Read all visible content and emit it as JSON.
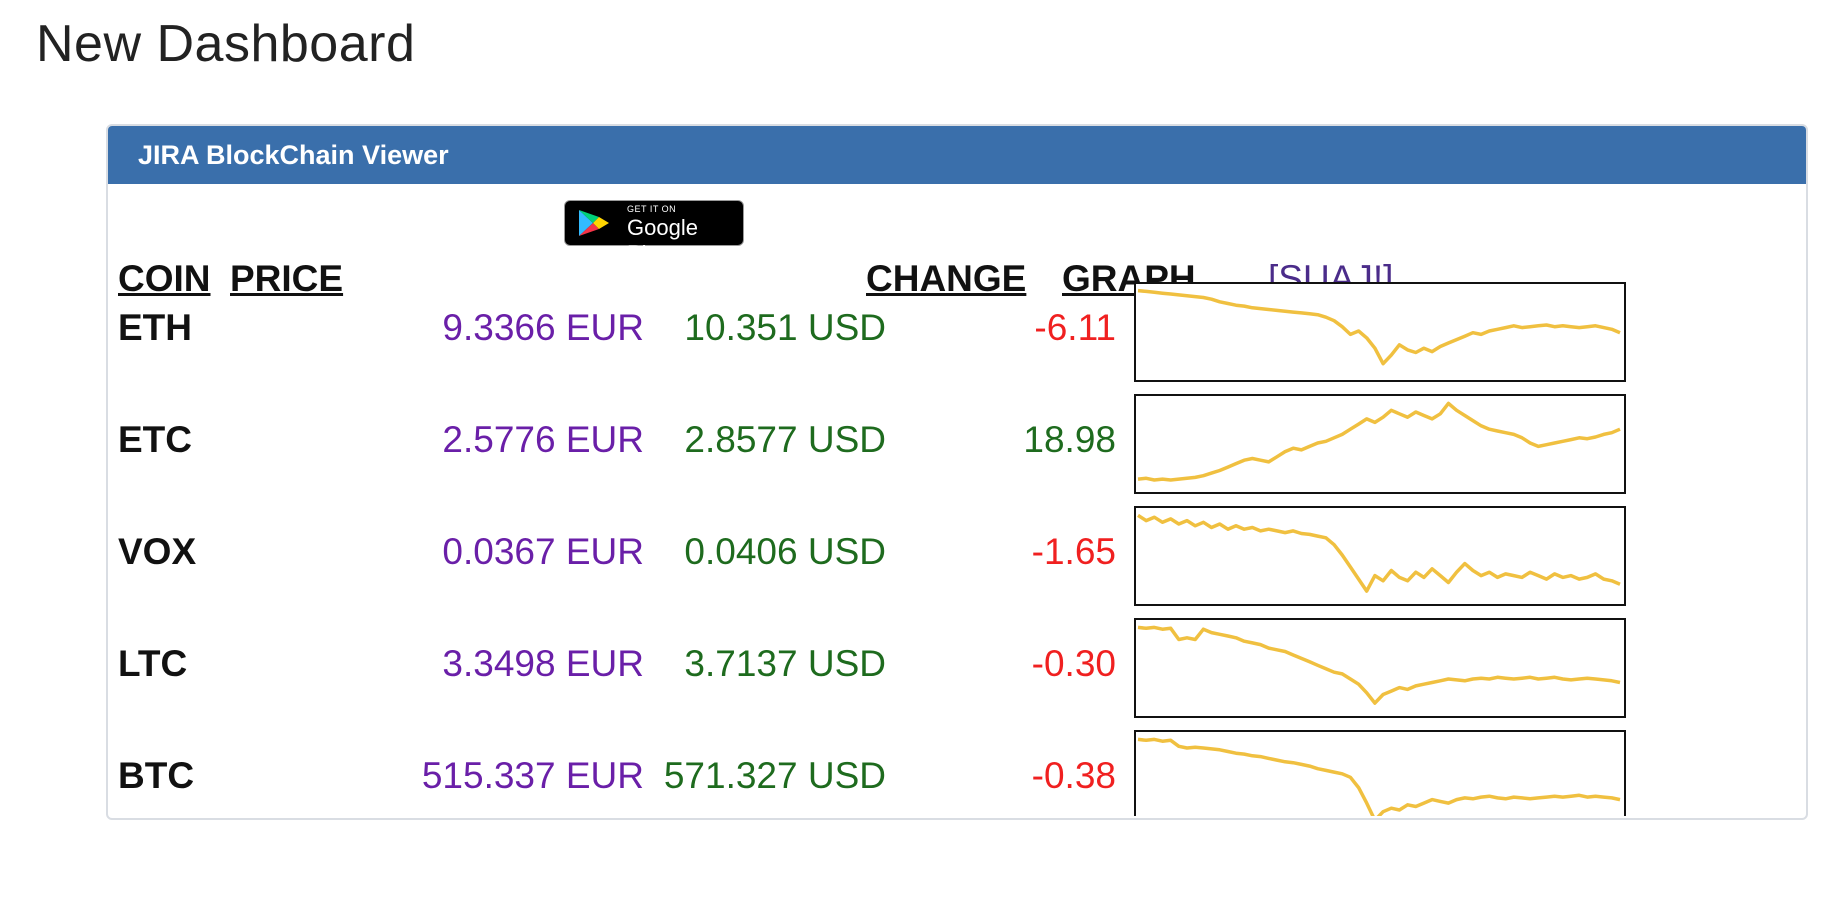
{
  "page": {
    "title": "New Dashboard"
  },
  "panel": {
    "title": "JIRA BlockChain Viewer"
  },
  "headers": {
    "coin": "COIN",
    "price": "PRICE",
    "change": "CHANGE",
    "graph": "GRAPH",
    "link": "[SUAJ!]"
  },
  "google_play": {
    "small_text": "GET IT ON",
    "big_text": "Google Play"
  },
  "colors": {
    "header_bg": "#3a6fab",
    "eur": "#6a1fa8",
    "usd": "#1e6b1e",
    "negative": "#f02020",
    "positive": "#1e6b1e",
    "sparkline": "#f0c040"
  },
  "rows": [
    {
      "coin": "ETH",
      "eur": "9.3366 EUR",
      "usd": "10.351 USD",
      "change": "-6.11",
      "direction": "negative",
      "spark": [
        0.97,
        0.96,
        0.95,
        0.94,
        0.93,
        0.92,
        0.91,
        0.9,
        0.89,
        0.87,
        0.84,
        0.82,
        0.8,
        0.79,
        0.77,
        0.76,
        0.75,
        0.74,
        0.73,
        0.72,
        0.71,
        0.7,
        0.69,
        0.66,
        0.62,
        0.55,
        0.46,
        0.5,
        0.42,
        0.3,
        0.12,
        0.22,
        0.34,
        0.28,
        0.25,
        0.3,
        0.26,
        0.32,
        0.36,
        0.4,
        0.44,
        0.48,
        0.46,
        0.5,
        0.52,
        0.54,
        0.56,
        0.54,
        0.55,
        0.56,
        0.57,
        0.55,
        0.56,
        0.55,
        0.54,
        0.55,
        0.56,
        0.54,
        0.52,
        0.48
      ]
    },
    {
      "coin": "ETC",
      "eur": "2.5776 EUR",
      "usd": "2.8577 USD",
      "change": "18.98",
      "direction": "positive",
      "spark": [
        0.08,
        0.09,
        0.07,
        0.08,
        0.07,
        0.08,
        0.09,
        0.1,
        0.12,
        0.15,
        0.18,
        0.22,
        0.26,
        0.3,
        0.32,
        0.3,
        0.28,
        0.34,
        0.4,
        0.44,
        0.42,
        0.46,
        0.5,
        0.52,
        0.56,
        0.6,
        0.66,
        0.72,
        0.78,
        0.74,
        0.8,
        0.88,
        0.84,
        0.8,
        0.86,
        0.82,
        0.78,
        0.84,
        0.96,
        0.88,
        0.82,
        0.76,
        0.7,
        0.66,
        0.64,
        0.62,
        0.6,
        0.56,
        0.5,
        0.46,
        0.48,
        0.5,
        0.52,
        0.54,
        0.56,
        0.55,
        0.57,
        0.6,
        0.62,
        0.66
      ]
    },
    {
      "coin": "VOX",
      "eur": "0.0367 EUR",
      "usd": "0.0406 USD",
      "change": "-1.65",
      "direction": "negative",
      "spark": [
        0.96,
        0.9,
        0.94,
        0.88,
        0.92,
        0.86,
        0.9,
        0.84,
        0.88,
        0.82,
        0.86,
        0.8,
        0.84,
        0.8,
        0.82,
        0.78,
        0.8,
        0.78,
        0.76,
        0.78,
        0.75,
        0.74,
        0.72,
        0.7,
        0.62,
        0.5,
        0.36,
        0.22,
        0.08,
        0.26,
        0.2,
        0.32,
        0.24,
        0.2,
        0.3,
        0.24,
        0.34,
        0.26,
        0.18,
        0.3,
        0.4,
        0.32,
        0.26,
        0.3,
        0.24,
        0.28,
        0.26,
        0.24,
        0.3,
        0.26,
        0.22,
        0.28,
        0.24,
        0.26,
        0.22,
        0.24,
        0.28,
        0.22,
        0.2,
        0.16
      ]
    },
    {
      "coin": "LTC",
      "eur": "3.3498 EUR",
      "usd": "3.7137 USD",
      "change": "-0.30",
      "direction": "negative",
      "spark": [
        0.96,
        0.95,
        0.96,
        0.94,
        0.95,
        0.82,
        0.84,
        0.82,
        0.94,
        0.9,
        0.88,
        0.86,
        0.84,
        0.8,
        0.78,
        0.76,
        0.72,
        0.7,
        0.68,
        0.64,
        0.6,
        0.56,
        0.52,
        0.48,
        0.44,
        0.42,
        0.36,
        0.3,
        0.2,
        0.08,
        0.18,
        0.22,
        0.26,
        0.24,
        0.28,
        0.3,
        0.32,
        0.34,
        0.36,
        0.35,
        0.34,
        0.36,
        0.37,
        0.36,
        0.38,
        0.37,
        0.36,
        0.37,
        0.38,
        0.36,
        0.37,
        0.38,
        0.36,
        0.35,
        0.36,
        0.37,
        0.36,
        0.35,
        0.34,
        0.32
      ]
    },
    {
      "coin": "BTC",
      "eur": "515.337 EUR",
      "usd": "571.327 USD",
      "change": "-0.38",
      "direction": "negative",
      "spark": [
        0.96,
        0.95,
        0.96,
        0.94,
        0.95,
        0.88,
        0.86,
        0.87,
        0.86,
        0.85,
        0.84,
        0.82,
        0.8,
        0.79,
        0.77,
        0.76,
        0.74,
        0.72,
        0.7,
        0.69,
        0.67,
        0.65,
        0.62,
        0.6,
        0.58,
        0.56,
        0.52,
        0.4,
        0.22,
        0.02,
        0.12,
        0.16,
        0.14,
        0.2,
        0.18,
        0.22,
        0.26,
        0.24,
        0.22,
        0.26,
        0.28,
        0.27,
        0.29,
        0.3,
        0.28,
        0.27,
        0.29,
        0.28,
        0.27,
        0.28,
        0.29,
        0.3,
        0.29,
        0.3,
        0.31,
        0.29,
        0.3,
        0.29,
        0.28,
        0.26
      ]
    }
  ]
}
